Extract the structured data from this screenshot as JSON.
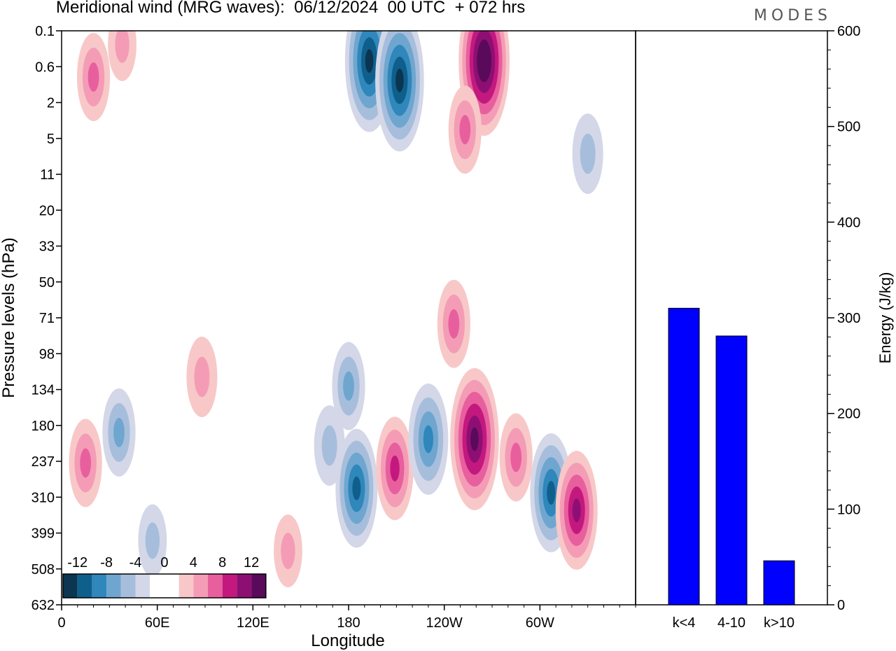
{
  "header": {
    "title": "Meridional wind (MRG waves):  06/12/2024  00 UTC  + 072 hrs",
    "logo": "MODES"
  },
  "chart_data": [
    {
      "type": "heatmap",
      "title": "Meridional wind (MRG waves)",
      "xlabel": "Longitude",
      "ylabel": "Pressure levels (hPa)",
      "x_ticks": [
        "0",
        "60E",
        "120E",
        "180",
        "120W",
        "60W"
      ],
      "y_ticks": [
        "0.1",
        "0.6",
        "2",
        "5",
        "11",
        "20",
        "33",
        "50",
        "71",
        "98",
        "134",
        "180",
        "237",
        "310",
        "399",
        "508",
        "632"
      ],
      "colorbar": {
        "labels": [
          "-12",
          "-8",
          "-4",
          "0",
          "4",
          "8",
          "12"
        ],
        "colors": [
          "#0b3550",
          "#0f5f8c",
          "#2f87bb",
          "#6fa6cf",
          "#a6bedc",
          "#d3d7e8",
          "#ffffff",
          "#ffffff",
          "#f8c8c8",
          "#f49cb6",
          "#e85f9e",
          "#c3197f",
          "#8e0f74",
          "#5a0a5a"
        ]
      },
      "features": [
        {
          "x": 193,
          "y": 0.45,
          "value": -13
        },
        {
          "x": 212,
          "y": 0.95,
          "value": -13
        },
        {
          "x": 265,
          "y": 0.45,
          "value": 14
        },
        {
          "x": 20,
          "y": 0.85,
          "value": 6
        },
        {
          "x": 38,
          "y": 0.2,
          "value": 4
        },
        {
          "x": 253,
          "y": 4.0,
          "value": 6
        },
        {
          "x": 330,
          "y": 7.0,
          "value": -5
        },
        {
          "x": 246,
          "y": 75,
          "value": 6
        },
        {
          "x": 180,
          "y": 130,
          "value": -6
        },
        {
          "x": 88,
          "y": 120,
          "value": 5
        },
        {
          "x": 15,
          "y": 240,
          "value": 6
        },
        {
          "x": 36,
          "y": 190,
          "value": -6
        },
        {
          "x": 168,
          "y": 210,
          "value": -5
        },
        {
          "x": 185,
          "y": 290,
          "value": -10
        },
        {
          "x": 209,
          "y": 250,
          "value": 8
        },
        {
          "x": 230,
          "y": 200,
          "value": -9
        },
        {
          "x": 259,
          "y": 200,
          "value": 13
        },
        {
          "x": 285,
          "y": 230,
          "value": 6
        },
        {
          "x": 307,
          "y": 300,
          "value": -10
        },
        {
          "x": 323,
          "y": 340,
          "value": 10
        },
        {
          "x": 57,
          "y": 420,
          "value": -4
        },
        {
          "x": 142,
          "y": 450,
          "value": 4
        }
      ]
    },
    {
      "type": "bar",
      "ylabel": "Energy (J/kg)",
      "categories": [
        "k<4",
        "4-10",
        "k>10"
      ],
      "values": [
        310,
        281,
        46
      ],
      "ylim": [
        0,
        600
      ],
      "y_ticks": [
        "0",
        "100",
        "200",
        "300",
        "400",
        "500",
        "600"
      ],
      "color": "#0000ff"
    }
  ]
}
